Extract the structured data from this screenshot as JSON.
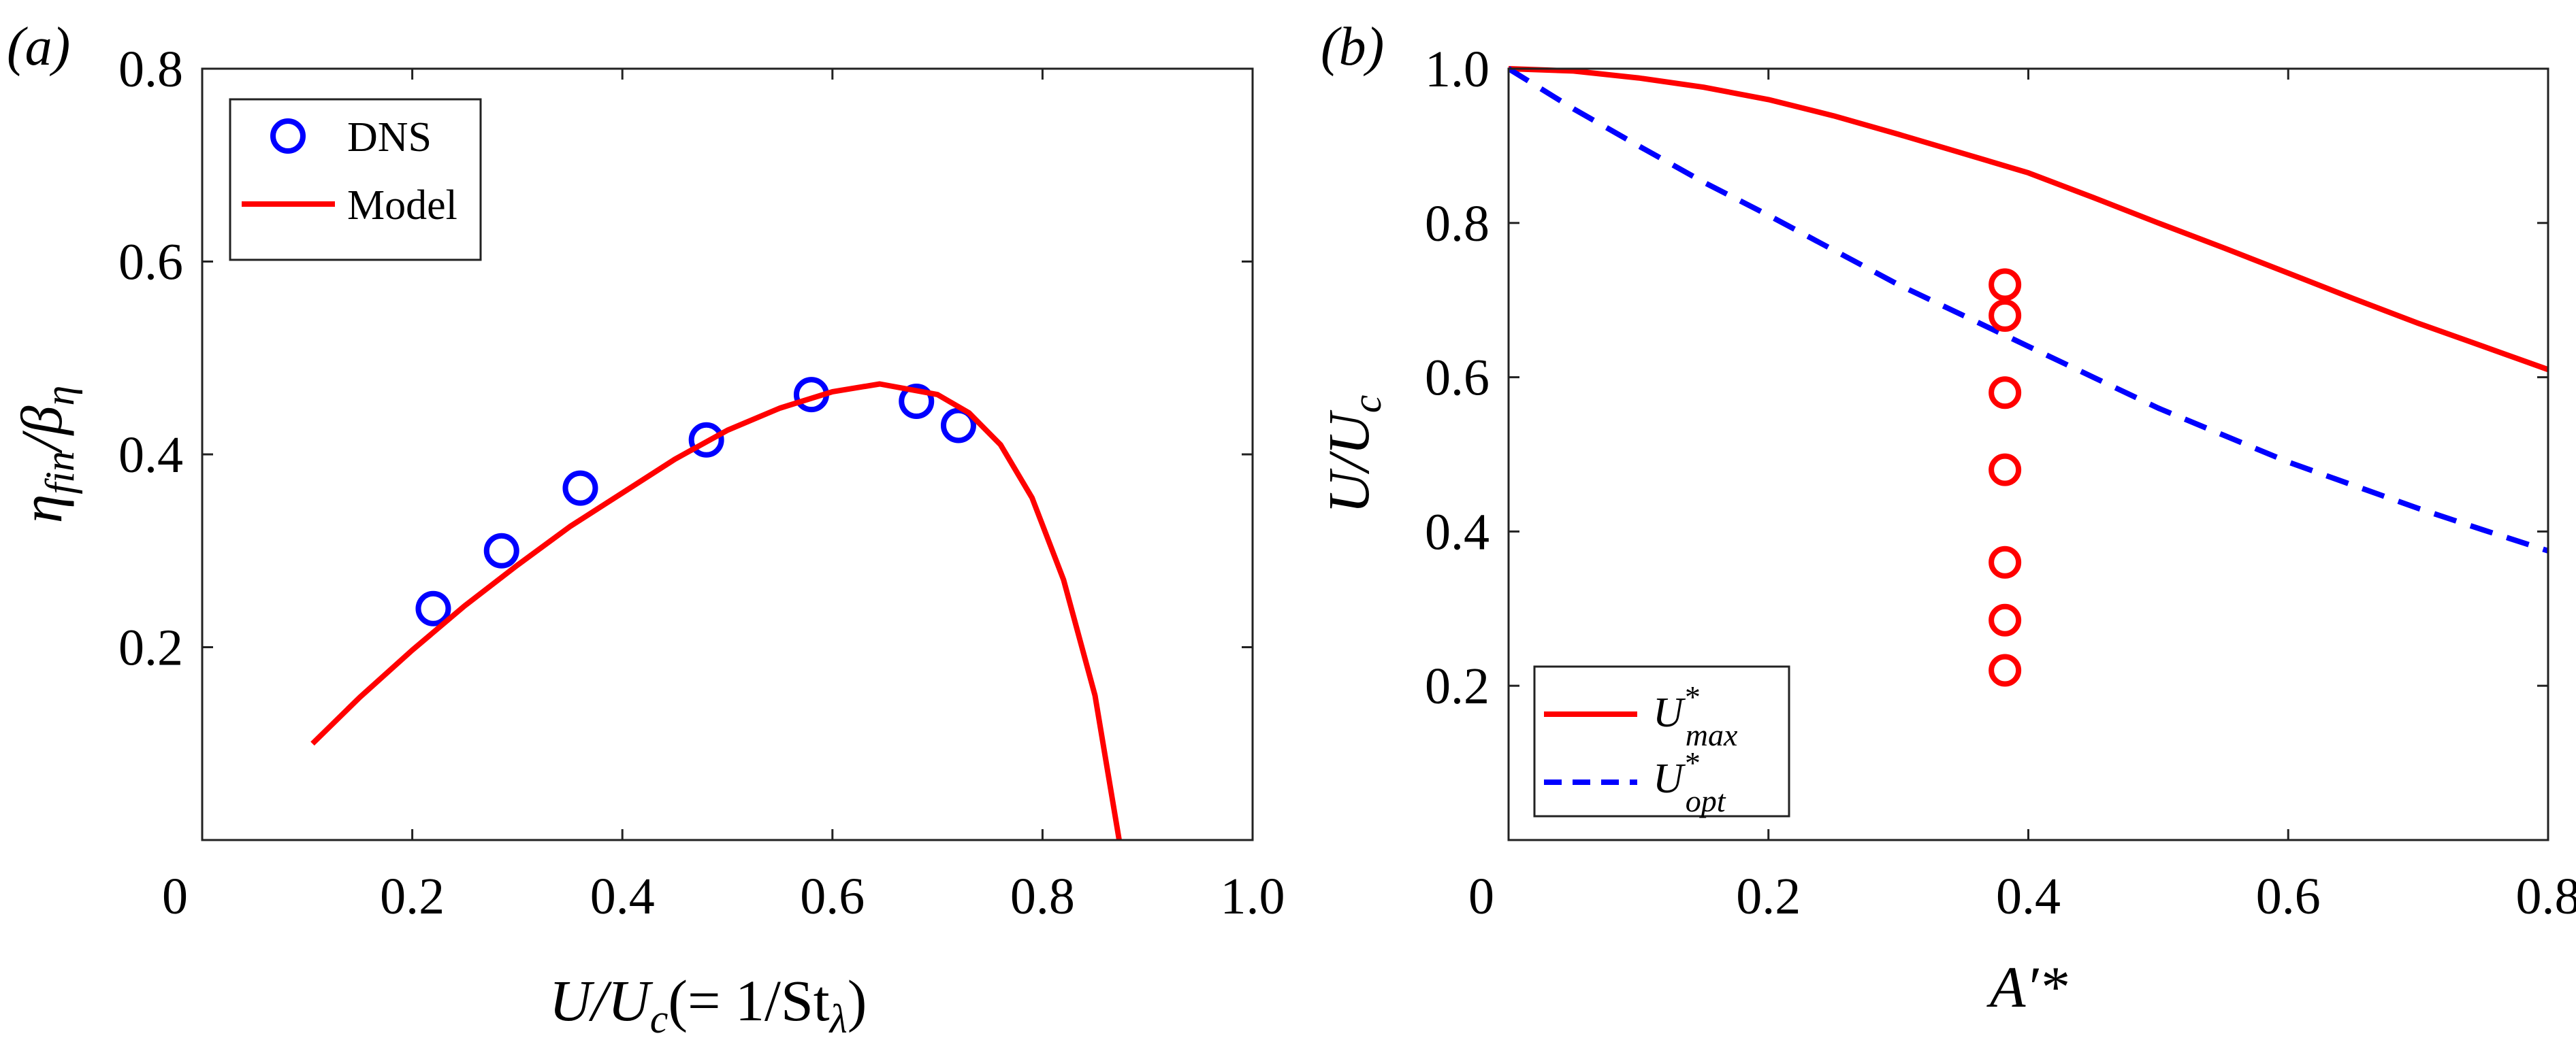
{
  "chart_data": [
    {
      "type": "scatter+line",
      "panel_label": "(a)",
      "xlabel": {
        "main": "U/U",
        "sub1": "c",
        "mid": "(= 1/St",
        "sub2": "λ",
        "end": ")"
      },
      "ylabel": {
        "a": "η",
        "asub": "fin",
        "b": "/β",
        "bsub": "η"
      },
      "xlim": [
        0,
        1.0
      ],
      "ylim": [
        0,
        0.8
      ],
      "xticks": [
        "0",
        "0.2",
        "0.4",
        "0.6",
        "0.8",
        "1.0"
      ],
      "xtick_values": [
        0,
        0.2,
        0.4,
        0.6,
        0.8,
        1.0
      ],
      "yticks": [
        "0.2",
        "0.4",
        "0.6",
        "0.8"
      ],
      "ytick_values": [
        0.2,
        0.4,
        0.6,
        0.8
      ],
      "legend_position": "top-left",
      "series": [
        {
          "name": "DNS",
          "kind": "markers",
          "marker": "open-circle",
          "color": "#0000ff",
          "x": [
            0.22,
            0.285,
            0.36,
            0.48,
            0.58,
            0.68,
            0.72
          ],
          "y": [
            0.24,
            0.3,
            0.365,
            0.415,
            0.462,
            0.455,
            0.43
          ]
        },
        {
          "name": "Model",
          "kind": "line",
          "dash": "solid",
          "color": "#ff0000",
          "x": [
            0.105,
            0.15,
            0.2,
            0.25,
            0.3,
            0.35,
            0.4,
            0.45,
            0.5,
            0.55,
            0.6,
            0.645,
            0.7,
            0.73,
            0.76,
            0.79,
            0.82,
            0.85,
            0.873
          ],
          "y": [
            0.1,
            0.148,
            0.197,
            0.243,
            0.285,
            0.325,
            0.36,
            0.395,
            0.425,
            0.448,
            0.465,
            0.473,
            0.462,
            0.443,
            0.41,
            0.355,
            0.27,
            0.15,
            0.0
          ]
        }
      ]
    },
    {
      "type": "scatter+line",
      "panel_label": "(b)",
      "xlabel": {
        "main": "A′*"
      },
      "ylabel": {
        "main": "U/U",
        "sub": "c"
      },
      "xlim": [
        0,
        0.8
      ],
      "ylim": [
        0,
        1.0
      ],
      "xticks": [
        "0",
        "0.2",
        "0.4",
        "0.6",
        "0.8"
      ],
      "xtick_values": [
        0,
        0.2,
        0.4,
        0.6,
        0.8
      ],
      "yticks": [
        "0.2",
        "0.4",
        "0.6",
        "0.8",
        "1.0"
      ],
      "ytick_values": [
        0.2,
        0.4,
        0.6,
        0.8,
        1.0
      ],
      "legend_position": "bottom-left",
      "series": [
        {
          "name": "U*max",
          "label_main": "U",
          "label_sup": "*",
          "label_sub": "max",
          "kind": "line",
          "dash": "solid",
          "color": "#ff0000",
          "x": [
            0,
            0.05,
            0.1,
            0.15,
            0.2,
            0.25,
            0.3,
            0.35,
            0.4,
            0.45,
            0.5,
            0.55,
            0.6,
            0.65,
            0.7,
            0.75,
            0.8
          ],
          "y": [
            1.0,
            0.997,
            0.988,
            0.976,
            0.96,
            0.939,
            0.915,
            0.89,
            0.865,
            0.833,
            0.8,
            0.768,
            0.735,
            0.702,
            0.67,
            0.64,
            0.61
          ]
        },
        {
          "name": "U*opt",
          "label_main": "U",
          "label_sup": "*",
          "label_sub": "opt",
          "kind": "line",
          "dash": "dashed",
          "color": "#0000ff",
          "x": [
            0,
            0.05,
            0.1,
            0.15,
            0.2,
            0.25,
            0.3,
            0.35,
            0.4,
            0.45,
            0.5,
            0.55,
            0.6,
            0.65,
            0.7,
            0.75,
            0.8
          ],
          "y": [
            1.0,
            0.948,
            0.9,
            0.853,
            0.81,
            0.765,
            0.72,
            0.68,
            0.64,
            0.6,
            0.56,
            0.525,
            0.49,
            0.46,
            0.43,
            0.402,
            0.375
          ]
        },
        {
          "kind": "markers",
          "marker": "open-circle",
          "color": "#ff0000",
          "x": [
            0.382,
            0.382,
            0.382,
            0.382,
            0.382,
            0.382,
            0.382
          ],
          "y": [
            0.72,
            0.68,
            0.58,
            0.48,
            0.36,
            0.285,
            0.22
          ]
        }
      ]
    }
  ]
}
